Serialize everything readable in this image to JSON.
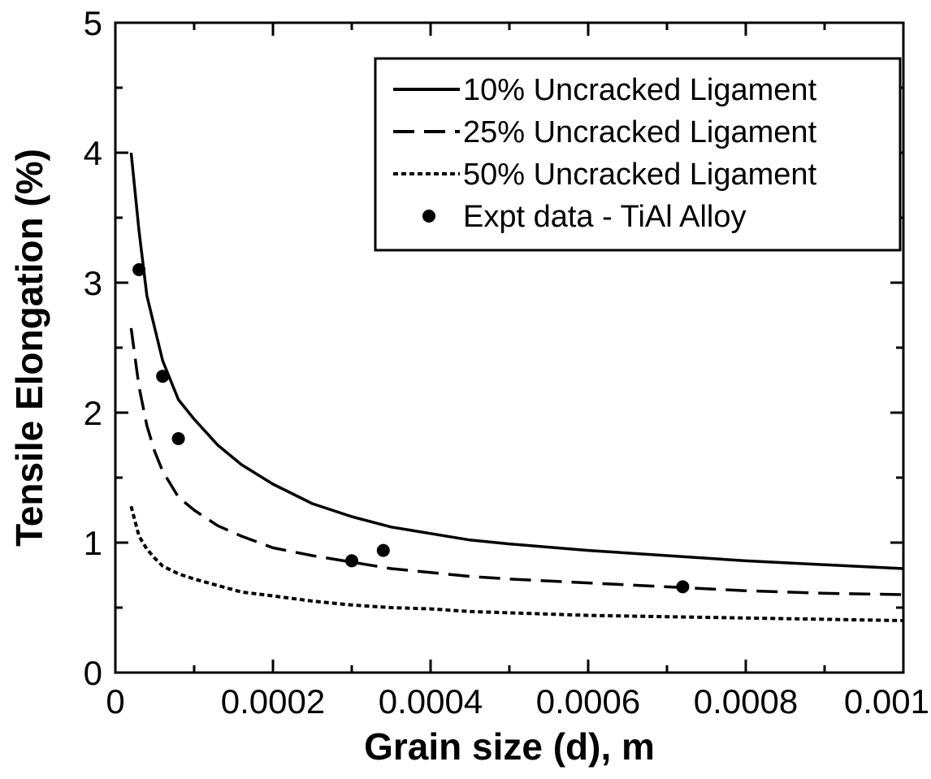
{
  "chart_data": {
    "type": "line",
    "title": "",
    "xlabel": "Grain size (d), m",
    "ylabel": "Tensile Elongation (%)",
    "xlim": [
      0,
      0.001
    ],
    "ylim": [
      0,
      5
    ],
    "x_ticks": [
      0,
      0.0002,
      0.0004,
      0.0006,
      0.0008,
      0.001
    ],
    "x_tick_labels": [
      "0",
      "0.0002",
      "0.0004",
      "0.0006",
      "0.0008",
      "0.001"
    ],
    "y_ticks": [
      0,
      1,
      2,
      3,
      4,
      5
    ],
    "y_tick_labels": [
      "0",
      "1",
      "2",
      "3",
      "4",
      "5"
    ],
    "grid": false,
    "legend_position": "top-right",
    "series": [
      {
        "name": "10% Uncracked Ligament",
        "style": "solid",
        "x": [
          2e-05,
          3e-05,
          4e-05,
          5e-05,
          6e-05,
          8e-05,
          0.0001,
          0.00013,
          0.00016,
          0.0002,
          0.00025,
          0.0003,
          0.00035,
          0.0004,
          0.00045,
          0.0005,
          0.0006,
          0.0007,
          0.0008,
          0.0009,
          0.001
        ],
        "y": [
          4.0,
          3.4,
          2.9,
          2.65,
          2.4,
          2.1,
          1.95,
          1.75,
          1.6,
          1.45,
          1.3,
          1.2,
          1.12,
          1.07,
          1.02,
          0.99,
          0.94,
          0.9,
          0.86,
          0.83,
          0.8
        ]
      },
      {
        "name": "25% Uncracked Ligament",
        "style": "dashed",
        "x": [
          2e-05,
          3e-05,
          4e-05,
          5e-05,
          6e-05,
          8e-05,
          0.0001,
          0.00013,
          0.00016,
          0.0002,
          0.00025,
          0.0003,
          0.00035,
          0.0004,
          0.00045,
          0.0005,
          0.0006,
          0.0007,
          0.0008,
          0.0009,
          0.001
        ],
        "y": [
          2.65,
          2.2,
          1.9,
          1.7,
          1.55,
          1.35,
          1.25,
          1.13,
          1.05,
          0.96,
          0.9,
          0.85,
          0.8,
          0.77,
          0.74,
          0.72,
          0.69,
          0.66,
          0.63,
          0.61,
          0.6
        ]
      },
      {
        "name": "50% Uncracked Ligament",
        "style": "dotted",
        "x": [
          2e-05,
          3e-05,
          4e-05,
          5e-05,
          6e-05,
          8e-05,
          0.0001,
          0.00013,
          0.00016,
          0.0002,
          0.00025,
          0.0003,
          0.00035,
          0.0004,
          0.00045,
          0.0005,
          0.0006,
          0.0007,
          0.0008,
          0.0009,
          0.001
        ],
        "y": [
          1.28,
          1.05,
          0.95,
          0.88,
          0.82,
          0.76,
          0.72,
          0.67,
          0.62,
          0.59,
          0.55,
          0.52,
          0.5,
          0.49,
          0.47,
          0.46,
          0.44,
          0.43,
          0.42,
          0.41,
          0.4
        ]
      },
      {
        "name": "Expt data - TiAl Alloy",
        "style": "markers",
        "x": [
          3e-05,
          6e-05,
          8e-05,
          0.0003,
          0.00034,
          0.00072
        ],
        "y": [
          3.1,
          2.28,
          1.8,
          0.86,
          0.94,
          0.66
        ]
      }
    ]
  }
}
